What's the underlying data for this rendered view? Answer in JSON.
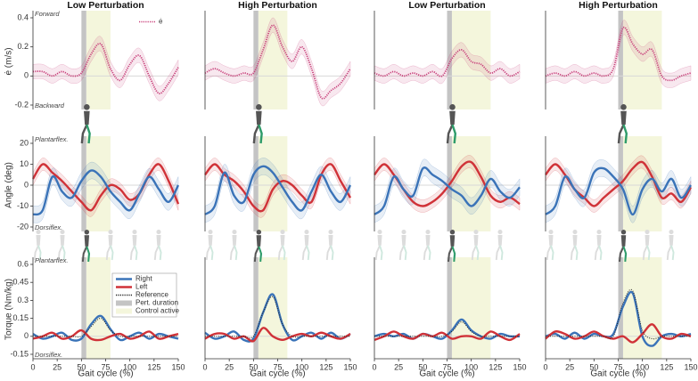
{
  "chart_data": [
    {
      "type": "line",
      "title": "Low Perturbation",
      "ylabel": "ė (m/s)",
      "annotations": {
        "top": "Forward",
        "bottom": "Backward"
      },
      "legend": "upper right",
      "x": [
        0,
        10,
        20,
        30,
        40,
        50,
        60,
        70,
        80,
        90,
        100,
        110,
        120,
        130,
        140,
        150
      ],
      "xlim": [
        0,
        150
      ],
      "ylim": [
        -0.2,
        0.4
      ],
      "yticks": [
        -0.2,
        0,
        0.2,
        0.4
      ],
      "pert": {
        "range": [
          50,
          55
        ],
        "color": "#c4c4c4"
      },
      "control": {
        "range": [
          55,
          80
        ],
        "color": "#f4f6dc"
      },
      "series": [
        {
          "name": "ė",
          "color": "#c8407a",
          "linestyle": "dotted",
          "sd": 0.05,
          "values": [
            0.03,
            0.03,
            0.0,
            0.03,
            0.0,
            0.02,
            0.15,
            0.22,
            0.05,
            -0.03,
            0.08,
            0.14,
            0.0,
            -0.12,
            -0.05,
            0.06
          ]
        }
      ]
    },
    {
      "type": "line",
      "title": "High Perturbation",
      "x": [
        0,
        10,
        20,
        30,
        40,
        50,
        60,
        70,
        80,
        90,
        100,
        110,
        120,
        130,
        140,
        150
      ],
      "xlim": [
        0,
        150
      ],
      "ylim": [
        -0.2,
        0.4
      ],
      "pert": {
        "range": [
          50,
          55
        ],
        "color": "#c4c4c4"
      },
      "control": {
        "range": [
          55,
          85
        ],
        "color": "#f4f6dc"
      },
      "series": [
        {
          "color": "#c8407a",
          "linestyle": "dotted",
          "sd": 0.05,
          "values": [
            0.02,
            0.05,
            0.02,
            0.0,
            0.02,
            0.02,
            0.18,
            0.35,
            0.2,
            0.1,
            0.2,
            0.05,
            -0.15,
            -0.1,
            -0.05,
            0.05
          ]
        }
      ]
    },
    {
      "type": "line",
      "title": "Low Perturbation",
      "x": [
        0,
        10,
        20,
        30,
        40,
        50,
        60,
        70,
        80,
        90,
        100,
        110,
        120,
        130,
        140,
        150
      ],
      "xlim": [
        0,
        150
      ],
      "ylim": [
        -0.2,
        0.4
      ],
      "pert": {
        "range": [
          75,
          80
        ],
        "color": "#c4c4c4"
      },
      "control": {
        "range": [
          80,
          120
        ],
        "color": "#f4f6dc"
      },
      "series": [
        {
          "color": "#c8407a",
          "linestyle": "dotted",
          "sd": 0.05,
          "values": [
            0.02,
            0.0,
            0.03,
            0.0,
            0.02,
            0.0,
            0.03,
            0.0,
            0.12,
            0.18,
            0.1,
            0.08,
            0.02,
            0.05,
            0.0,
            0.03
          ]
        }
      ]
    },
    {
      "type": "line",
      "title": "High Perturbation",
      "x": [
        0,
        10,
        20,
        30,
        40,
        50,
        60,
        70,
        80,
        90,
        100,
        110,
        120,
        130,
        140,
        150
      ],
      "xlim": [
        0,
        150
      ],
      "ylim": [
        -0.2,
        0.4
      ],
      "pert": {
        "range": [
          75,
          80
        ],
        "color": "#c4c4c4"
      },
      "control": {
        "range": [
          80,
          120
        ],
        "color": "#f4f6dc"
      },
      "series": [
        {
          "color": "#c8407a",
          "linestyle": "dotted",
          "sd": 0.05,
          "values": [
            0.0,
            0.02,
            0.0,
            0.03,
            0.0,
            0.02,
            0.0,
            0.05,
            0.33,
            0.22,
            0.15,
            0.18,
            0.0,
            -0.03,
            0.0,
            0.02
          ]
        }
      ]
    },
    {
      "type": "line",
      "ylabel": "Angle (deg)",
      "annotations": {
        "top": "Plantarflex.",
        "bottom": "Dorsiflex."
      },
      "x": [
        0,
        10,
        20,
        30,
        40,
        50,
        60,
        70,
        80,
        90,
        100,
        110,
        120,
        130,
        140,
        150
      ],
      "xlim": [
        0,
        150
      ],
      "ylim": [
        -20,
        20
      ],
      "yticks": [
        -20,
        -10,
        0,
        10,
        20
      ],
      "pert": {
        "range": [
          50,
          55
        ],
        "color": "#c4c4c4"
      },
      "control": {
        "range": [
          55,
          80
        ],
        "color": "#f4f6dc"
      },
      "series": [
        {
          "color": "#d03238",
          "sd": 3,
          "values": [
            3,
            10,
            6,
            2,
            -3,
            -8,
            -12,
            -5,
            0,
            -2,
            -7,
            -4,
            5,
            10,
            2,
            -9
          ]
        },
        {
          "color": "#3a73b8",
          "sd": 4,
          "values": [
            -14,
            -12,
            4,
            -3,
            -6,
            2,
            7,
            4,
            -3,
            -8,
            -12,
            -4,
            4,
            -2,
            -8,
            0
          ]
        }
      ]
    },
    {
      "type": "line",
      "x": [
        0,
        10,
        20,
        30,
        40,
        50,
        60,
        70,
        80,
        90,
        100,
        110,
        120,
        130,
        140,
        150
      ],
      "xlim": [
        0,
        150
      ],
      "ylim": [
        -20,
        20
      ],
      "pert": {
        "range": [
          50,
          55
        ],
        "color": "#c4c4c4"
      },
      "control": {
        "range": [
          55,
          85
        ],
        "color": "#f4f6dc"
      },
      "series": [
        {
          "color": "#d03238",
          "sd": 3,
          "values": [
            5,
            10,
            5,
            2,
            -3,
            -10,
            -12,
            -2,
            2,
            0,
            -5,
            -8,
            5,
            10,
            2,
            -6
          ]
        },
        {
          "color": "#3a73b8",
          "sd": 4,
          "values": [
            -14,
            -10,
            6,
            -5,
            -8,
            5,
            9,
            6,
            -1,
            -8,
            -12,
            -3,
            5,
            -3,
            -8,
            0
          ]
        }
      ]
    },
    {
      "type": "line",
      "x": [
        0,
        10,
        20,
        30,
        40,
        50,
        60,
        70,
        80,
        90,
        100,
        110,
        120,
        130,
        140,
        150
      ],
      "xlim": [
        0,
        150
      ],
      "ylim": [
        -20,
        20
      ],
      "pert": {
        "range": [
          75,
          80
        ],
        "color": "#c4c4c4"
      },
      "control": {
        "range": [
          80,
          120
        ],
        "color": "#f4f6dc"
      },
      "series": [
        {
          "color": "#d03238",
          "sd": 3,
          "values": [
            5,
            10,
            5,
            -2,
            -8,
            -10,
            -8,
            -4,
            2,
            9,
            11,
            4,
            -5,
            -8,
            -6,
            -9
          ]
        },
        {
          "color": "#3a73b8",
          "sd": 4,
          "values": [
            -14,
            -10,
            4,
            -2,
            -5,
            8,
            5,
            2,
            -2,
            -5,
            -10,
            -5,
            3,
            -3,
            -6,
            -1
          ]
        }
      ]
    },
    {
      "type": "line",
      "x": [
        0,
        10,
        20,
        30,
        40,
        50,
        60,
        70,
        80,
        90,
        100,
        110,
        120,
        130,
        140,
        150
      ],
      "xlim": [
        0,
        150
      ],
      "ylim": [
        -20,
        20
      ],
      "pert": {
        "range": [
          75,
          80
        ],
        "color": "#c4c4c4"
      },
      "control": {
        "range": [
          80,
          120
        ],
        "color": "#f4f6dc"
      },
      "series": [
        {
          "color": "#d03238",
          "sd": 3,
          "values": [
            5,
            10,
            5,
            -2,
            -6,
            -10,
            -6,
            -2,
            2,
            8,
            11,
            4,
            -6,
            -4,
            -8,
            -1
          ]
        },
        {
          "color": "#3a73b8",
          "sd": 4,
          "values": [
            -14,
            -10,
            4,
            -2,
            -6,
            6,
            8,
            4,
            -2,
            -14,
            -2,
            3,
            -3,
            3,
            -6,
            0
          ]
        }
      ]
    },
    {
      "type": "line",
      "ylabel": "Torque (Nm/kg)",
      "xlabel": "Gait cycle (%)",
      "annotations": {
        "top": "Plantarflex.",
        "bottom": "Dorsiflex."
      },
      "legend": "upper right",
      "x": [
        0,
        10,
        20,
        30,
        40,
        50,
        60,
        70,
        80,
        90,
        100,
        110,
        120,
        130,
        140,
        150
      ],
      "xlim": [
        0,
        150
      ],
      "xticks": [
        0,
        25,
        50,
        75,
        100,
        125,
        150
      ],
      "ylim": [
        -0.15,
        0.6
      ],
      "yticks": [
        -0.15,
        0,
        0.15,
        0.3,
        0.45,
        0.6
      ],
      "pert": {
        "name": "Pert. duration",
        "range": [
          50,
          55
        ],
        "color": "#c4c4c4"
      },
      "control": {
        "name": "Control active",
        "range": [
          55,
          80
        ],
        "color": "#f4f6dc"
      },
      "series": [
        {
          "name": "Right",
          "color": "#3a73b8",
          "values": [
            0.02,
            -0.02,
            0.0,
            0.03,
            -0.03,
            -0.02,
            0.1,
            0.17,
            0.06,
            -0.03,
            0.0,
            0.03,
            -0.02,
            0.02,
            0.0,
            -0.02
          ]
        },
        {
          "name": "Left",
          "color": "#d03238",
          "values": [
            -0.02,
            0.0,
            0.03,
            -0.02,
            0.0,
            0.05,
            -0.02,
            -0.03,
            0.0,
            0.02,
            -0.02,
            0.0,
            0.04,
            -0.02,
            0.0,
            0.02
          ]
        },
        {
          "name": "Reference",
          "color": "#222222",
          "linestyle": "dotted",
          "values": [
            0,
            0,
            0,
            0,
            0,
            0,
            0.08,
            0.15,
            0.05,
            0,
            0,
            0,
            0,
            0,
            0,
            0
          ]
        }
      ]
    },
    {
      "type": "line",
      "xlabel": "Gait cycle (%)",
      "x": [
        0,
        10,
        20,
        30,
        40,
        50,
        60,
        70,
        80,
        90,
        100,
        110,
        120,
        130,
        140,
        150
      ],
      "xlim": [
        0,
        150
      ],
      "xticks": [
        0,
        25,
        50,
        75,
        100,
        125,
        150
      ],
      "ylim": [
        -0.15,
        0.6
      ],
      "pert": {
        "range": [
          50,
          55
        ],
        "color": "#c4c4c4"
      },
      "control": {
        "range": [
          55,
          85
        ],
        "color": "#f4f6dc"
      },
      "series": [
        {
          "color": "#3a73b8",
          "values": [
            0.03,
            -0.02,
            0.0,
            0.04,
            -0.03,
            -0.02,
            0.2,
            0.35,
            0.1,
            -0.03,
            0.0,
            0.03,
            -0.02,
            0.03,
            -0.02,
            0.02
          ]
        },
        {
          "color": "#d03238",
          "values": [
            -0.02,
            0.02,
            0.02,
            -0.02,
            0.0,
            -0.04,
            0.07,
            0.0,
            -0.03,
            0.0,
            0.02,
            0.0,
            0.03,
            0.0,
            -0.02,
            0.02
          ]
        },
        {
          "color": "#222222",
          "linestyle": "dotted",
          "values": [
            0,
            0,
            0,
            0,
            0,
            0,
            0.2,
            0.33,
            0.1,
            0,
            0,
            0,
            0,
            0,
            0,
            0
          ]
        }
      ]
    },
    {
      "type": "line",
      "xlabel": "Gait cycle (%)",
      "x": [
        0,
        10,
        20,
        30,
        40,
        50,
        60,
        70,
        80,
        90,
        100,
        110,
        120,
        130,
        140,
        150
      ],
      "xlim": [
        0,
        150
      ],
      "xticks": [
        0,
        25,
        50,
        75,
        100,
        125,
        150
      ],
      "ylim": [
        -0.15,
        0.6
      ],
      "pert": {
        "range": [
          75,
          80
        ],
        "color": "#c4c4c4"
      },
      "control": {
        "range": [
          80,
          120
        ],
        "color": "#f4f6dc"
      },
      "series": [
        {
          "color": "#3a73b8",
          "values": [
            0.0,
            0.02,
            0.0,
            0.02,
            -0.02,
            0.02,
            0.0,
            -0.02,
            0.05,
            0.14,
            0.05,
            0.0,
            -0.02,
            0.02,
            0.0,
            0.0
          ]
        },
        {
          "color": "#d03238",
          "values": [
            -0.03,
            0.0,
            0.04,
            0.0,
            -0.02,
            0.02,
            0.0,
            0.03,
            -0.02,
            0.0,
            0.0,
            -0.02,
            0.04,
            0.0,
            -0.03,
            0.02
          ]
        },
        {
          "color": "#222222",
          "linestyle": "dotted",
          "values": [
            0,
            0,
            0,
            0,
            0,
            0,
            0,
            0,
            0.04,
            0.12,
            0.04,
            0,
            0,
            0,
            0,
            0
          ]
        }
      ]
    },
    {
      "type": "line",
      "xlabel": "Gait cycle (%)",
      "x": [
        0,
        10,
        20,
        30,
        40,
        50,
        60,
        70,
        80,
        90,
        100,
        110,
        120,
        130,
        140,
        150
      ],
      "xlim": [
        0,
        150
      ],
      "xticks": [
        0,
        25,
        50,
        75,
        100,
        125,
        150
      ],
      "ylim": [
        -0.15,
        0.6
      ],
      "pert": {
        "range": [
          75,
          80
        ],
        "color": "#c4c4c4"
      },
      "control": {
        "range": [
          80,
          120
        ],
        "color": "#f4f6dc"
      },
      "series": [
        {
          "color": "#3a73b8",
          "values": [
            0.0,
            0.02,
            -0.02,
            0.03,
            -0.02,
            0.02,
            0.0,
            0.02,
            0.25,
            0.36,
            0.0,
            -0.08,
            0.0,
            0.02,
            0.0,
            0.02
          ]
        },
        {
          "color": "#d03238",
          "values": [
            -0.02,
            0.04,
            0.02,
            -0.02,
            0.0,
            0.04,
            0.0,
            -0.02,
            0.0,
            -0.05,
            0.02,
            0.1,
            0.0,
            -0.02,
            0.02,
            0.0
          ]
        },
        {
          "color": "#222222",
          "linestyle": "dotted",
          "values": [
            0,
            0,
            0,
            0,
            0,
            0,
            0,
            0,
            0.28,
            0.38,
            0.05,
            -0.02,
            0,
            0,
            0,
            0
          ]
        }
      ]
    }
  ]
}
